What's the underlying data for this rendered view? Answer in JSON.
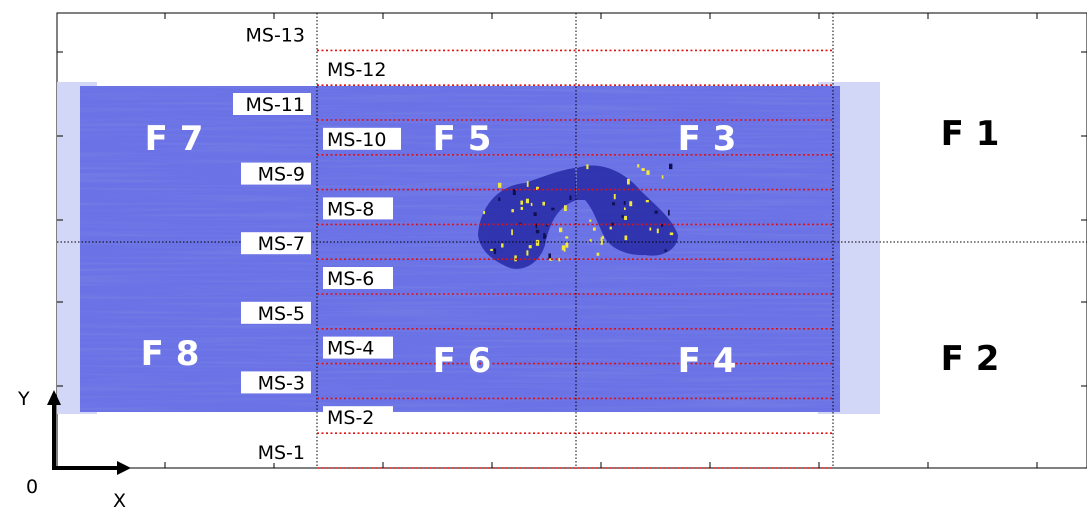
{
  "figure": {
    "axis_labels": {
      "y": "Y",
      "x": "X",
      "origin": "0"
    },
    "measurement_lines": [
      "MS-1",
      "MS-2",
      "MS-3",
      "MS-4",
      "MS-5",
      "MS-6",
      "MS-7",
      "MS-8",
      "MS-9",
      "MS-10",
      "MS-11",
      "MS-12",
      "MS-13"
    ],
    "fields": [
      "F 1",
      "F 2",
      "F 3",
      "F 4",
      "F 5",
      "F 6",
      "F 7",
      "F 8"
    ],
    "colors": {
      "scan_light": "#c9cdf5",
      "scan_mid": "#6f76e8",
      "scan_dark": "#2c33c8",
      "defect_core": "#1b1f86",
      "highlight": "#f2e640",
      "ms_line": "#e01010",
      "frame": "#000000"
    }
  }
}
